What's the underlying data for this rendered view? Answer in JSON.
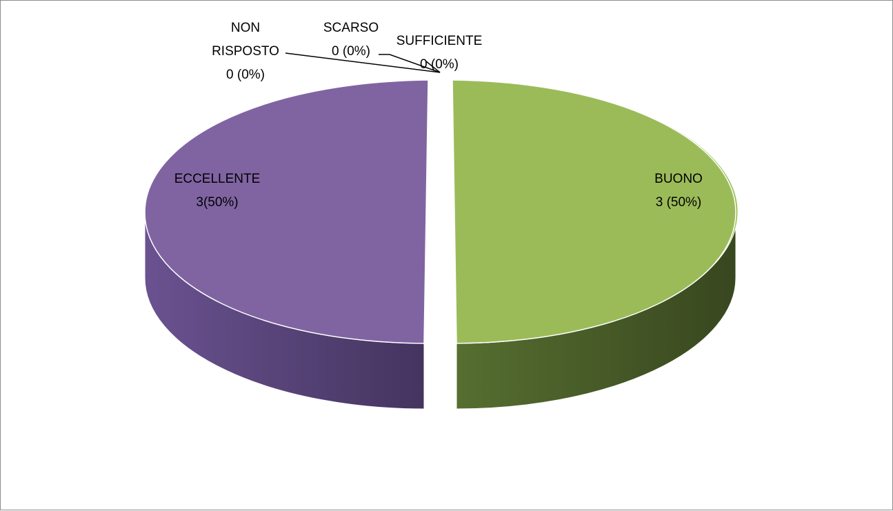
{
  "chart_data": {
    "type": "pie",
    "title": "",
    "slices": [
      {
        "label": "SUFFICIENTE",
        "value_text": "0 (0%)",
        "value": 0,
        "percent": 0,
        "color": "#9bbb59"
      },
      {
        "label": "BUONO",
        "value_text": "3 (50%)",
        "value": 3,
        "percent": 50,
        "color": "#9bbb59"
      },
      {
        "label": "ECCELLENTE",
        "value_text": "3(50%)",
        "value": 3,
        "percent": 50,
        "color": "#8064a2"
      },
      {
        "label": "NON RISPOSTO",
        "value_text": "0 (0%)",
        "value": 0,
        "percent": 0,
        "color": "#4f81bd"
      },
      {
        "label": "SCARSO",
        "value_text": "0 (0%)",
        "value": 0,
        "percent": 0,
        "color": "#c0504d"
      }
    ],
    "legend": "none",
    "style": "3d-exploded"
  }
}
